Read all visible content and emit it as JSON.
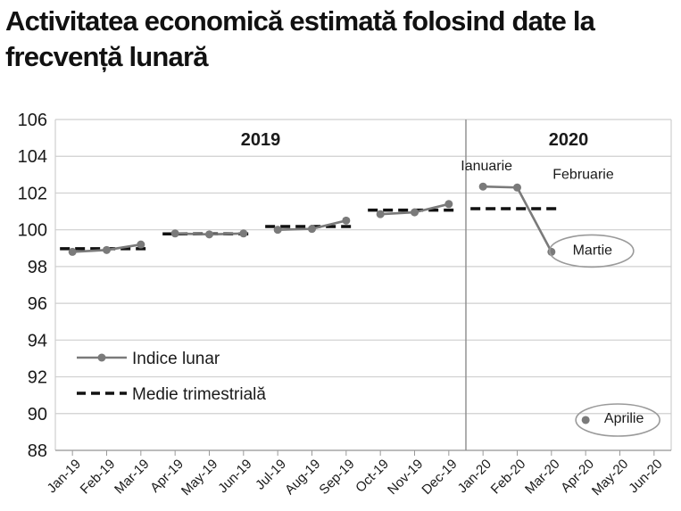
{
  "title_lines": [
    "Activitatea economică estimată folosind date la",
    "frecvență lunară"
  ],
  "chart_data": {
    "type": "line",
    "title": "Activitatea economică estimată folosind date la frecvență lunară",
    "xlabel": "",
    "ylabel": "",
    "ylim": [
      88,
      106
    ],
    "yticks": [
      88,
      90,
      92,
      94,
      96,
      98,
      100,
      102,
      104,
      106
    ],
    "grid": true,
    "legend_position": "left",
    "categories": [
      "Jan-19",
      "Feb-19",
      "Mar-19",
      "Apr-19",
      "May-19",
      "Jun-19",
      "Jul-19",
      "Aug-19",
      "Sep-19",
      "Oct-19",
      "Nov-19",
      "Dec-19",
      "Jan-20",
      "Feb-20",
      "Mar-20",
      "Apr-20",
      "May-20",
      "Jun-20"
    ],
    "year_labels": [
      "2019",
      "2020"
    ],
    "series": [
      {
        "name": "Indice lunar",
        "style": "line-marker",
        "color": "#7a7a7a",
        "segments": [
          {
            "x": [
              "Jan-19",
              "Feb-19",
              "Mar-19"
            ],
            "y": [
              98.8,
              98.9,
              99.2
            ]
          },
          {
            "x": [
              "Apr-19",
              "May-19",
              "Jun-19"
            ],
            "y": [
              99.8,
              99.75,
              99.8
            ]
          },
          {
            "x": [
              "Jul-19",
              "Aug-19",
              "Sep-19"
            ],
            "y": [
              100.0,
              100.05,
              100.5
            ]
          },
          {
            "x": [
              "Oct-19",
              "Nov-19",
              "Dec-19"
            ],
            "y": [
              100.85,
              100.95,
              101.4
            ]
          },
          {
            "x": [
              "Jan-20",
              "Feb-20",
              "Mar-20"
            ],
            "y": [
              102.35,
              102.3,
              98.8
            ]
          }
        ]
      },
      {
        "name": "Medie trimestrială",
        "style": "dashed",
        "color": "#111111",
        "segments": [
          {
            "x": [
              "Jan-19",
              "Mar-19"
            ],
            "y": [
              98.97,
              98.97
            ]
          },
          {
            "x": [
              "Apr-19",
              "Jun-19"
            ],
            "y": [
              99.78,
              99.78
            ]
          },
          {
            "x": [
              "Jul-19",
              "Sep-19"
            ],
            "y": [
              100.18,
              100.18
            ]
          },
          {
            "x": [
              "Oct-19",
              "Dec-19"
            ],
            "y": [
              101.07,
              101.07
            ]
          },
          {
            "x": [
              "Jan-20",
              "Mar-20"
            ],
            "y": [
              101.15,
              101.15
            ]
          }
        ]
      }
    ],
    "separate_points": [
      {
        "x": "Apr-20",
        "y": 89.65
      }
    ],
    "annotations": [
      {
        "text": "Ianuarie",
        "x": "Jan-20",
        "y": 102.35,
        "circled": false
      },
      {
        "text": "Februarie",
        "x": "Feb-20",
        "y": 102.3,
        "circled": false
      },
      {
        "text": "Martie",
        "x": "Mar-20",
        "y": 98.8,
        "circled": true
      },
      {
        "text": "Aprilie",
        "x": "Apr-20",
        "y": 89.65,
        "circled": true
      }
    ],
    "colors": {
      "line": "#7a7a7a",
      "dashed": "#111111",
      "grid": "#cfcfcf",
      "divider": "#8c8c8c",
      "ellipse": "#9a9a9a"
    }
  }
}
